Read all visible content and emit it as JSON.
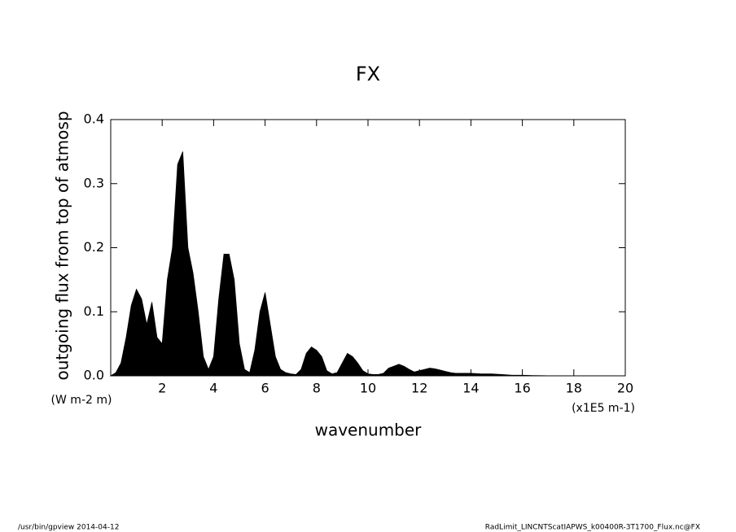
{
  "chart_data": {
    "type": "area",
    "title": "FX",
    "ylabel": "outgoing flux from top of atmosp",
    "yunit": "(W m-2 m)",
    "xlabel": "wavenumber",
    "xunit": "(x1E5 m-1)",
    "x": [
      0,
      0.2,
      0.4,
      0.6,
      0.8,
      1.0,
      1.2,
      1.4,
      1.6,
      1.8,
      2.0,
      2.2,
      2.4,
      2.6,
      2.8,
      3.0,
      3.2,
      3.4,
      3.6,
      3.8,
      4.0,
      4.2,
      4.4,
      4.6,
      4.8,
      5.0,
      5.2,
      5.4,
      5.6,
      5.8,
      6.0,
      6.2,
      6.4,
      6.6,
      6.8,
      7.0,
      7.2,
      7.4,
      7.6,
      7.8,
      8.0,
      8.2,
      8.4,
      8.6,
      8.8,
      9.0,
      9.2,
      9.4,
      9.6,
      9.8,
      10.0,
      10.2,
      10.4,
      10.6,
      10.8,
      11.0,
      11.2,
      11.4,
      11.6,
      11.8,
      12.0,
      12.2,
      12.4,
      12.6,
      12.8,
      13.0,
      13.2,
      13.4,
      13.6,
      13.8,
      14.0,
      14.4,
      14.8,
      15.2,
      15.6,
      16.0,
      16.4,
      17,
      18,
      20
    ],
    "series": [
      {
        "color": "#000000",
        "values": [
          0,
          0.005,
          0.02,
          0.06,
          0.11,
          0.135,
          0.12,
          0.08,
          0.115,
          0.06,
          0.05,
          0.15,
          0.2,
          0.33,
          0.35,
          0.2,
          0.16,
          0.1,
          0.03,
          0.01,
          0.03,
          0.12,
          0.19,
          0.19,
          0.15,
          0.05,
          0.01,
          0.005,
          0.04,
          0.1,
          0.13,
          0.08,
          0.03,
          0.01,
          0.005,
          0.003,
          0.002,
          0.01,
          0.035,
          0.045,
          0.04,
          0.03,
          0.008,
          0.003,
          0.005,
          0.02,
          0.035,
          0.03,
          0.02,
          0.008,
          0.003,
          0.002,
          0.002,
          0.004,
          0.012,
          0.015,
          0.018,
          0.015,
          0.01,
          0.006,
          0.008,
          0.01,
          0.012,
          0.011,
          0.009,
          0.007,
          0.005,
          0.004,
          0.004,
          0.004,
          0.004,
          0.003,
          0.003,
          0.002,
          0.001,
          0.001,
          0.0005,
          0.0002,
          0,
          0
        ]
      }
    ],
    "xlim": [
      0,
      20
    ],
    "xticks": [
      2,
      4,
      6,
      8,
      10,
      12,
      14,
      16,
      18,
      20
    ],
    "ylim": [
      0,
      0.4
    ],
    "yticks": [
      {
        "value": 0,
        "label": "0.0"
      },
      0.1,
      0.2,
      0.3,
      0.4
    ],
    "footer_left": "/usr/bin/gpview  2014-04-12",
    "footer_right": "RadLimit_LINCNTScatIAPWS_k00400R-3T1700_Flux.nc@FX"
  }
}
